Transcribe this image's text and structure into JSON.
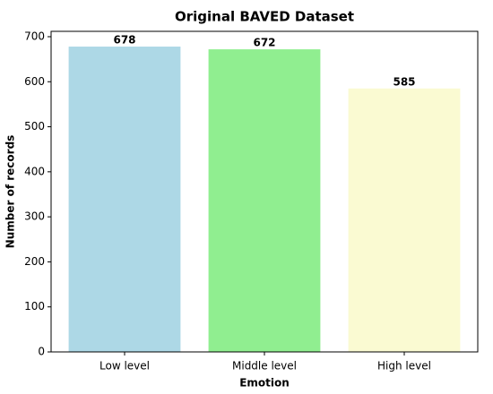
{
  "chart_data": {
    "type": "bar",
    "title": "Original BAVED Dataset",
    "x_label": "Emotion",
    "y_label": "Number of records",
    "categories": [
      "Low level",
      "Middle level",
      "High level"
    ],
    "values": [
      678,
      672,
      585
    ],
    "colors": [
      "#add8e6",
      "#90ee90",
      "#fafad2"
    ],
    "ylim": [
      0,
      711.9
    ],
    "yticks": [
      0,
      100,
      200,
      300,
      400,
      500,
      600,
      700
    ]
  }
}
